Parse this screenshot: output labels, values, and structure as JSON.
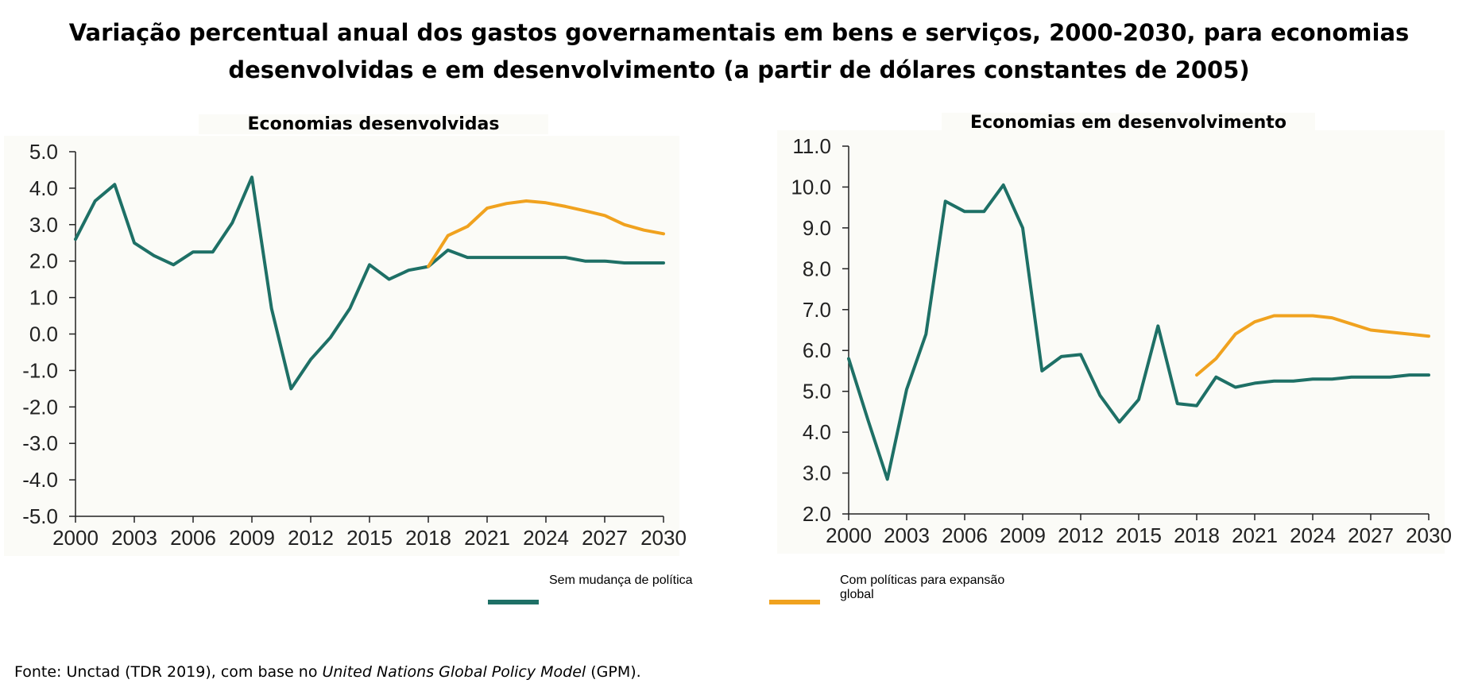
{
  "title_line1": "Variação percentual anual dos gastos governamentais em bens e serviços, 2000-2030, para economias",
  "title_line2": "desenvolvidas e em desenvolvimento (a partir de dólares constantes de 2005)",
  "legend": [
    {
      "label": "Sem mudança de política",
      "color": "#1e7066"
    },
    {
      "label": "Com políticas para expansão global",
      "color": "#f0a21f"
    }
  ],
  "source": {
    "prefix": "Fonte: Unctad (TDR 2019), com base no ",
    "italic": "United Nations Global Policy Model",
    "suffix": " (GPM)."
  },
  "chart_data": [
    {
      "type": "line",
      "title": "Economias desenvolvidas",
      "xlim": [
        2000,
        2030
      ],
      "ylim": [
        -5.0,
        5.0
      ],
      "x_ticks": [
        "2000",
        "2003",
        "2006",
        "2009",
        "2012",
        "2015",
        "2018",
        "2021",
        "2024",
        "2027",
        "2030"
      ],
      "y_ticks": [
        "5.0",
        "4.0",
        "3.0",
        "2.0",
        "1.0",
        "0.0",
        "-1.0",
        "-2.0",
        "-3.0",
        "-4.0",
        "-5.0"
      ],
      "grid": false,
      "series": [
        {
          "name": "Sem mudança de política",
          "color": "#1e7066",
          "x": [
            2000,
            2001,
            2002,
            2003,
            2004,
            2005,
            2006,
            2007,
            2008,
            2009,
            2010,
            2011,
            2012,
            2013,
            2014,
            2015,
            2016,
            2017,
            2018,
            2019,
            2020,
            2021,
            2022,
            2023,
            2024,
            2025,
            2026,
            2027,
            2028,
            2029,
            2030
          ],
          "y": [
            2.6,
            3.65,
            4.1,
            2.5,
            2.15,
            1.9,
            2.25,
            2.25,
            3.05,
            4.3,
            0.7,
            -1.5,
            -0.7,
            -0.1,
            0.7,
            1.9,
            1.5,
            1.75,
            1.85,
            2.3,
            2.1,
            2.1,
            2.1,
            2.1,
            2.1,
            2.1,
            2.0,
            2.0,
            1.95,
            1.95,
            1.95
          ]
        },
        {
          "name": "Com políticas para expansão global",
          "color": "#f0a21f",
          "x": [
            2018,
            2019,
            2020,
            2021,
            2022,
            2023,
            2024,
            2025,
            2026,
            2027,
            2028,
            2029,
            2030
          ],
          "y": [
            1.85,
            2.7,
            2.95,
            3.45,
            3.58,
            3.65,
            3.6,
            3.5,
            3.38,
            3.25,
            3.0,
            2.85,
            2.75
          ]
        }
      ]
    },
    {
      "type": "line",
      "title": "Economias em desenvolvimento",
      "xlim": [
        2000,
        2030
      ],
      "ylim": [
        2.0,
        11.0
      ],
      "x_ticks": [
        "2000",
        "2003",
        "2006",
        "2009",
        "2012",
        "2015",
        "2018",
        "2021",
        "2024",
        "2027",
        "2030"
      ],
      "y_ticks": [
        "11.0",
        "10.0",
        "9.0",
        "8.0",
        "7.0",
        "6.0",
        "5.0",
        "4.0",
        "3.0",
        "2.0"
      ],
      "grid": false,
      "series": [
        {
          "name": "Sem mudança de política",
          "color": "#1e7066",
          "x": [
            2000,
            2001,
            2002,
            2003,
            2004,
            2005,
            2006,
            2007,
            2008,
            2009,
            2010,
            2011,
            2012,
            2013,
            2014,
            2015,
            2016,
            2017,
            2018,
            2019,
            2020,
            2021,
            2022,
            2023,
            2024,
            2025,
            2026,
            2027,
            2028,
            2029,
            2030
          ],
          "y": [
            5.8,
            4.3,
            2.85,
            5.05,
            6.4,
            9.65,
            9.4,
            9.4,
            10.05,
            9.0,
            5.5,
            5.85,
            5.9,
            4.9,
            4.25,
            4.8,
            6.6,
            4.7,
            4.65,
            5.35,
            5.1,
            5.2,
            5.25,
            5.25,
            5.3,
            5.3,
            5.35,
            5.35,
            5.35,
            5.4,
            5.4
          ]
        },
        {
          "name": "Com políticas para expansão global",
          "color": "#f0a21f",
          "x": [
            2018,
            2019,
            2020,
            2021,
            2022,
            2023,
            2024,
            2025,
            2026,
            2027,
            2028,
            2029,
            2030
          ],
          "y": [
            5.4,
            5.8,
            6.4,
            6.7,
            6.85,
            6.85,
            6.85,
            6.8,
            6.65,
            6.5,
            6.45,
            6.4,
            6.35
          ]
        }
      ]
    }
  ]
}
